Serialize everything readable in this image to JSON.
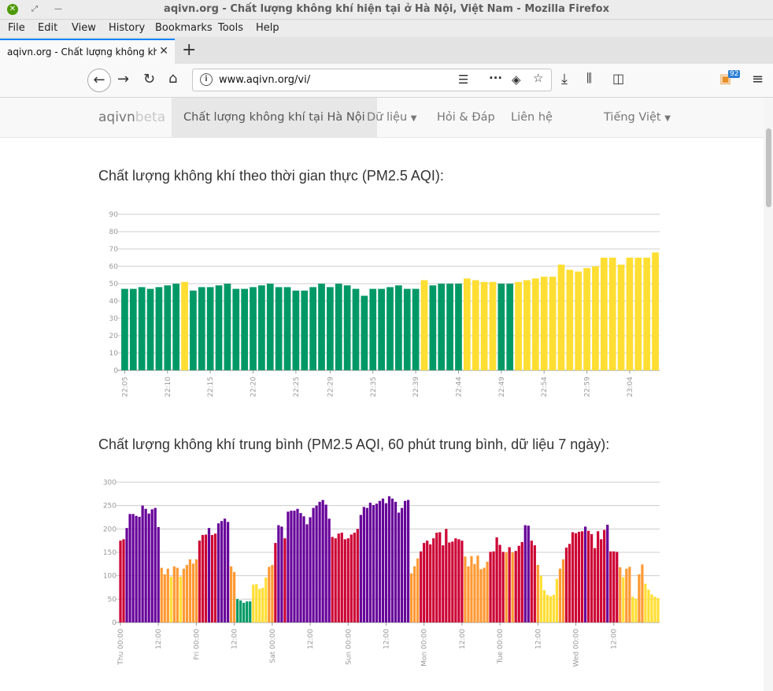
{
  "window": {
    "title": "aqivn.org - Chất lượng không khí hiện tại ở Hà Nội, Việt Nam - Mozilla Firefox"
  },
  "menu": [
    "File",
    "Edit",
    "View",
    "History",
    "Bookmarks",
    "Tools",
    "Help"
  ],
  "tab": {
    "label": "aqivn.org - Chất lượng không khí h",
    "new_tab": "+"
  },
  "urlbar": {
    "url": "www.aqivn.org/vi/"
  },
  "toolbar": {
    "badge_count": "92"
  },
  "site": {
    "brand": "aqivn",
    "brand_suffix": "beta",
    "nav": {
      "active": "Chất lượng không khí tại Hà Nội",
      "data": "Dữ liệu",
      "faq": "Hỏi & Đáp",
      "contact": "Liên hệ",
      "language": "Tiếng Việt"
    }
  },
  "headings": {
    "realtime": "Chất lượng không khí theo thời gian thực (PM2.5 AQI):",
    "average": "Chất lượng không khí trung bình (PM2.5 AQI, 60 phút trung bình, dữ liệu 7 ngày):"
  },
  "colors": {
    "good": "#009966",
    "moderate": "#ffde33",
    "sensitive": "#ff9933",
    "unhealthy": "#cc0033",
    "very_unhealthy": "#660099"
  },
  "chart_data": [
    {
      "type": "bar",
      "yticks": [
        0,
        10,
        20,
        30,
        40,
        50,
        60,
        70,
        80,
        90
      ],
      "ylim": [
        0,
        90
      ],
      "xticks": [
        "22:05",
        "22:10",
        "22:15",
        "22:20",
        "22:25",
        "22:29",
        "22:35",
        "22:39",
        "22:44",
        "22:49",
        "22:54",
        "22:59",
        "23:04"
      ],
      "values": [
        47,
        47,
        48,
        47,
        48,
        49,
        50,
        51,
        46,
        48,
        48,
        49,
        50,
        47,
        47,
        48,
        49,
        50,
        48,
        48,
        46,
        46,
        48,
        50,
        48,
        50,
        49,
        47,
        43,
        47,
        47,
        48,
        49,
        47,
        47,
        52,
        49,
        50,
        50,
        50,
        53,
        52,
        51,
        51,
        50,
        50,
        51,
        52,
        53,
        54,
        54,
        61,
        58,
        57,
        59,
        60,
        65,
        65,
        61,
        65,
        65,
        65,
        68
      ]
    },
    {
      "type": "bar",
      "yticks": [
        0,
        50,
        100,
        150,
        200,
        250,
        300
      ],
      "ylim": [
        0,
        300
      ],
      "xticks": [
        "Thu 00:00",
        "12:00",
        "Fri 00:00",
        "12:00",
        "Sat 00:00",
        "12:00",
        "Sun 00:00",
        "12:00",
        "Mon 00:00",
        "12:00",
        "Tue 00:00",
        "12:00",
        "Wed 00:00",
        "12:00"
      ],
      "values": [
        175,
        178,
        202,
        232,
        232,
        228,
        226,
        250,
        243,
        233,
        242,
        245,
        204,
        117,
        103,
        115,
        98,
        120,
        117,
        98,
        115,
        123,
        135,
        126,
        135,
        175,
        187,
        188,
        202,
        187,
        190,
        212,
        217,
        222,
        215,
        120,
        108,
        50,
        47,
        42,
        45,
        45,
        81,
        82,
        72,
        74,
        96,
        119,
        123,
        170,
        208,
        205,
        180,
        237,
        239,
        239,
        243,
        234,
        227,
        210,
        225,
        245,
        250,
        258,
        262,
        252,
        222,
        183,
        180,
        190,
        192,
        178,
        180,
        188,
        192,
        200,
        230,
        247,
        245,
        256,
        251,
        254,
        260,
        265,
        255,
        270,
        265,
        258,
        235,
        245,
        260,
        262,
        105,
        120,
        137,
        152,
        170,
        175,
        167,
        180,
        192,
        193,
        165,
        200,
        171,
        173,
        180,
        178,
        175,
        141,
        120,
        142,
        125,
        143,
        114,
        117,
        130,
        151,
        152,
        182,
        166,
        151,
        150,
        161,
        150,
        153,
        164,
        172,
        208,
        207,
        175,
        165,
        123,
        100,
        69,
        59,
        56,
        59,
        93,
        115,
        135,
        160,
        168,
        193,
        191,
        194,
        195,
        205,
        196,
        189,
        159,
        195,
        178,
        198,
        209,
        152,
        152,
        151,
        118,
        97,
        115,
        119,
        55,
        51,
        103,
        124,
        83,
        70,
        60,
        55,
        52
      ]
    }
  ]
}
